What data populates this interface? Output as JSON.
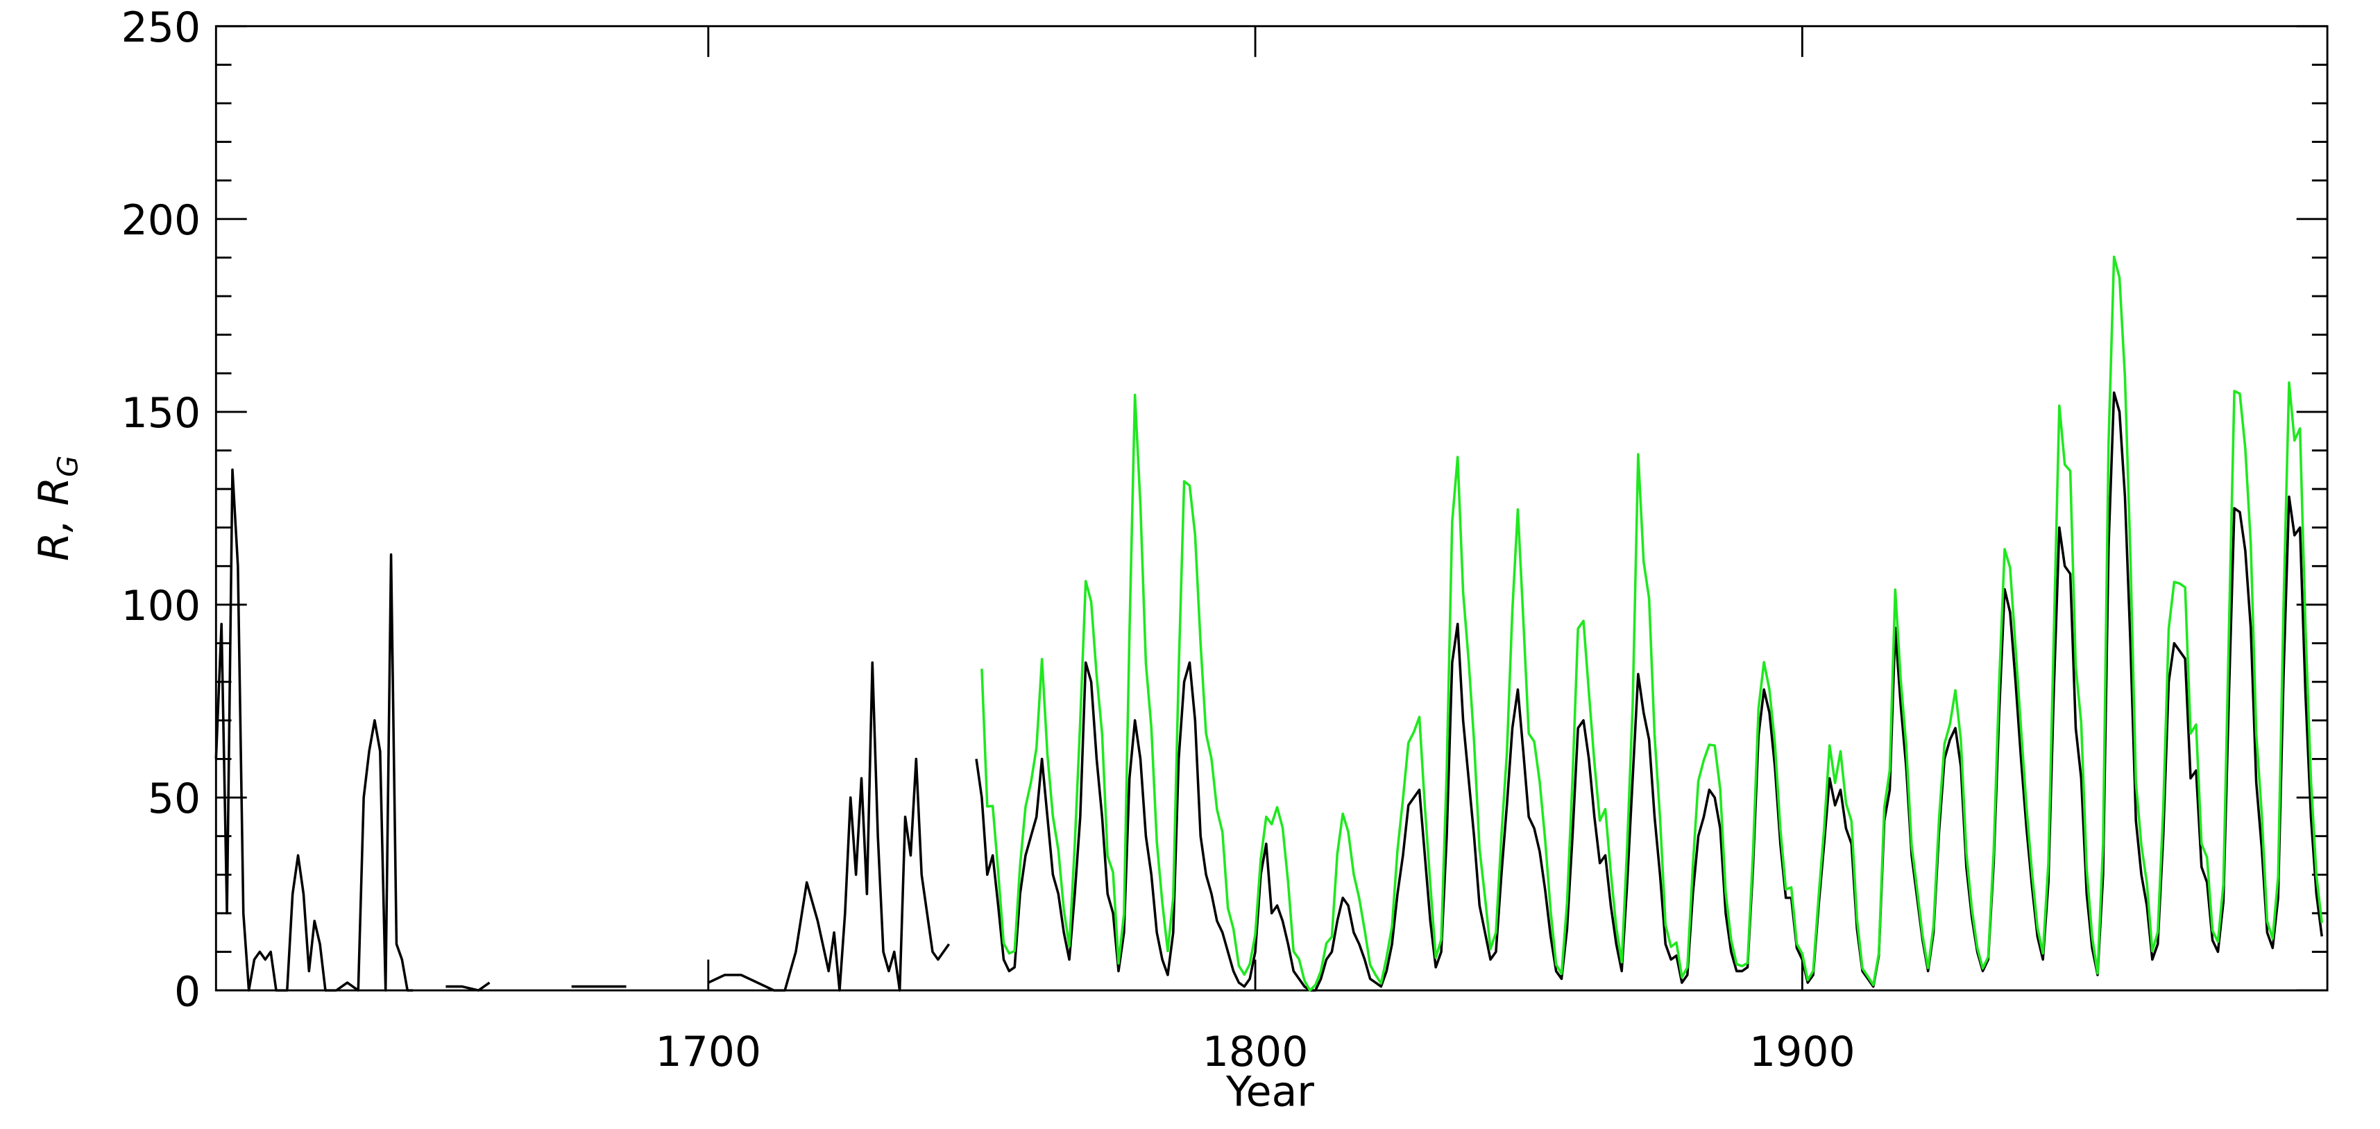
{
  "chart_data": {
    "type": "line",
    "x_label": "Year",
    "y_label": {
      "text": "R,  R",
      "subscript": "G"
    },
    "xlim": [
      1610,
      1996
    ],
    "xticks": [
      1700,
      1800,
      1900
    ],
    "ylim": [
      0,
      250
    ],
    "yticks": [
      0,
      50,
      100,
      150,
      200,
      250
    ],
    "yminorticks": [
      10,
      20,
      30,
      40,
      60,
      70,
      80,
      90,
      110,
      120,
      130,
      140,
      160,
      170,
      180,
      190,
      210,
      220,
      230,
      240
    ],
    "x": [
      1610,
      1611,
      1612,
      1613,
      1614,
      1615,
      1616,
      1617,
      1618,
      1619,
      1620,
      1621,
      1622,
      1623,
      1624,
      1625,
      1626,
      1627,
      1628,
      1629,
      1630,
      1632,
      1634,
      1636,
      1637,
      1638,
      1639,
      1640,
      1641,
      1642,
      1643,
      1644,
      1645,
      1646,
      1648,
      1652,
      1655,
      1658,
      1660,
      1662,
      1670,
      1672,
      1675,
      1680,
      1685,
      1688,
      1700,
      1703,
      1706,
      1709,
      1712,
      1714,
      1716,
      1718,
      1720,
      1722,
      1723,
      1724,
      1725,
      1726,
      1727,
      1728,
      1729,
      1730,
      1731,
      1732,
      1733,
      1734,
      1735,
      1736,
      1737,
      1738,
      1739,
      1740,
      1741,
      1742,
      1744,
      1745,
      1749,
      1750,
      1751,
      1752,
      1753,
      1754,
      1755,
      1756,
      1757,
      1758,
      1759,
      1760,
      1761,
      1762,
      1763,
      1764,
      1765,
      1766,
      1767,
      1768,
      1769,
      1770,
      1771,
      1772,
      1773,
      1774,
      1775,
      1776,
      1777,
      1778,
      1779,
      1780,
      1781,
      1782,
      1783,
      1784,
      1785,
      1786,
      1787,
      1788,
      1789,
      1790,
      1791,
      1792,
      1793,
      1794,
      1795,
      1796,
      1797,
      1798,
      1799,
      1800,
      1801,
      1802,
      1803,
      1804,
      1805,
      1806,
      1807,
      1808,
      1809,
      1810,
      1811,
      1812,
      1813,
      1814,
      1815,
      1816,
      1817,
      1818,
      1819,
      1820,
      1821,
      1822,
      1823,
      1824,
      1825,
      1826,
      1827,
      1828,
      1829,
      1830,
      1831,
      1832,
      1833,
      1834,
      1835,
      1836,
      1837,
      1838,
      1839,
      1840,
      1841,
      1842,
      1843,
      1844,
      1845,
      1846,
      1847,
      1848,
      1849,
      1850,
      1851,
      1852,
      1853,
      1854,
      1855,
      1856,
      1857,
      1858,
      1859,
      1860,
      1861,
      1862,
      1863,
      1864,
      1865,
      1866,
      1867,
      1868,
      1869,
      1870,
      1871,
      1872,
      1873,
      1874,
      1875,
      1876,
      1877,
      1878,
      1879,
      1880,
      1881,
      1882,
      1883,
      1884,
      1885,
      1886,
      1887,
      1888,
      1889,
      1890,
      1891,
      1892,
      1893,
      1894,
      1895,
      1896,
      1897,
      1898,
      1899,
      1900,
      1901,
      1902,
      1903,
      1904,
      1905,
      1906,
      1907,
      1908,
      1909,
      1910,
      1911,
      1912,
      1913,
      1914,
      1915,
      1916,
      1917,
      1918,
      1919,
      1920,
      1921,
      1922,
      1923,
      1924,
      1925,
      1926,
      1927,
      1928,
      1929,
      1930,
      1931,
      1932,
      1933,
      1934,
      1935,
      1936,
      1937,
      1938,
      1939,
      1940,
      1941,
      1942,
      1943,
      1944,
      1945,
      1946,
      1947,
      1948,
      1949,
      1950,
      1951,
      1952,
      1953,
      1954,
      1955,
      1956,
      1957,
      1958,
      1959,
      1960,
      1961,
      1962,
      1963,
      1964,
      1965,
      1966,
      1967,
      1968,
      1969,
      1970,
      1971,
      1972,
      1973,
      1974,
      1975,
      1976,
      1977,
      1978,
      1979,
      1980,
      1981,
      1982,
      1983,
      1984,
      1985,
      1986,
      1987,
      1988,
      1989,
      1990,
      1991,
      1992,
      1993,
      1994,
      1995
    ],
    "series": [
      {
        "color": "#000000",
        "values": [
          60,
          95,
          20,
          135,
          110,
          20,
          0,
          8,
          10,
          8,
          10,
          0,
          0,
          0,
          25,
          35,
          25,
          5,
          18,
          12,
          0,
          0,
          2,
          0,
          50,
          62,
          70,
          62,
          0,
          113,
          12,
          8,
          0,
          0,
          null,
          1,
          1,
          0,
          2,
          null,
          1,
          null,
          1,
          1,
          1,
          null,
          2,
          4,
          4,
          2,
          0,
          0,
          10,
          28,
          18,
          5,
          15,
          0,
          20,
          50,
          30,
          55,
          25,
          85,
          40,
          10,
          5,
          10,
          0,
          45,
          35,
          60,
          30,
          20,
          10,
          8,
          12,
          null,
          60,
          50,
          30,
          35,
          22,
          8,
          5,
          6,
          25,
          35,
          40,
          45,
          60,
          45,
          30,
          25,
          15,
          8,
          25,
          45,
          85,
          80,
          60,
          45,
          25,
          20,
          5,
          15,
          55,
          70,
          60,
          40,
          30,
          15,
          8,
          4,
          15,
          60,
          80,
          85,
          70,
          40,
          30,
          25,
          18,
          15,
          10,
          5,
          2,
          1,
          3,
          10,
          30,
          38,
          20,
          22,
          18,
          12,
          5,
          3,
          1,
          0,
          0,
          3,
          8,
          10,
          18,
          24,
          22,
          15,
          12,
          8,
          3,
          2,
          1,
          5,
          12,
          25,
          35,
          48,
          50,
          52,
          35,
          18,
          6,
          10,
          40,
          85,
          95,
          70,
          55,
          40,
          22,
          15,
          8,
          10,
          30,
          48,
          68,
          78,
          62,
          45,
          42,
          36,
          26,
          14,
          5,
          3,
          16,
          40,
          68,
          70,
          60,
          45,
          33,
          35,
          22,
          12,
          5,
          28,
          55,
          82,
          72,
          65,
          45,
          30,
          12,
          8,
          9,
          2,
          4,
          25,
          40,
          45,
          52,
          50,
          42,
          20,
          10,
          5,
          5,
          6,
          32,
          66,
          78,
          72,
          58,
          38,
          24,
          24,
          11,
          8,
          2,
          4,
          22,
          38,
          55,
          48,
          52,
          42,
          38,
          16,
          5,
          3,
          1,
          9,
          44,
          52,
          94,
          74,
          58,
          35,
          24,
          13,
          5,
          15,
          41,
          60,
          65,
          68,
          58,
          32,
          19,
          10,
          5,
          8,
          33,
          72,
          104,
          98,
          80,
          60,
          42,
          27,
          14,
          8,
          28,
          78,
          120,
          110,
          108,
          68,
          55,
          25,
          11,
          4,
          30,
          115,
          155,
          150,
          128,
          90,
          44,
          30,
          22,
          8,
          12,
          40,
          80,
          90,
          88,
          86,
          55,
          57,
          32,
          28,
          13,
          10,
          23,
          76,
          125,
          124,
          114,
          94,
          54,
          37,
          15,
          11,
          24,
          82,
          128,
          118,
          120,
          77,
          45,
          25,
          14
        ]
      },
      {
        "color": "#1fe81f",
        "values": [
          null,
          null,
          null,
          null,
          null,
          null,
          null,
          null,
          null,
          null,
          null,
          null,
          null,
          null,
          null,
          null,
          null,
          null,
          null,
          null,
          null,
          null,
          null,
          null,
          null,
          null,
          null,
          null,
          null,
          null,
          null,
          null,
          null,
          null,
          null,
          null,
          null,
          null,
          null,
          null,
          null,
          null,
          null,
          null,
          null,
          null,
          null,
          null,
          null,
          null,
          null,
          null,
          null,
          null,
          null,
          null,
          null,
          null,
          null,
          null,
          null,
          null,
          null,
          null,
          null,
          null,
          null,
          null,
          null,
          null,
          null,
          null,
          null,
          null,
          null,
          null,
          null,
          null,
          null,
          83.4,
          47.7,
          47.8,
          30.7,
          12.2,
          9.6,
          10.2,
          32.4,
          47.6,
          54.0,
          62.9,
          85.9,
          61.2,
          45.1,
          36.4,
          20.9,
          11.4,
          37.8,
          69.8,
          106.1,
          100.8,
          81.6,
          66.5,
          34.8,
          30.6,
          7.0,
          19.8,
          92.5,
          154.4,
          125.9,
          84.8,
          68.1,
          38.5,
          22.8,
          10.2,
          24.1,
          82.9,
          132.0,
          130.9,
          118.1,
          89.9,
          66.6,
          60.0,
          46.9,
          41.0,
          21.3,
          16.0,
          6.4,
          4.1,
          6.8,
          14.5,
          34.0,
          45.0,
          43.1,
          47.5,
          42.2,
          28.1,
          10.1,
          8.1,
          2.5,
          0.0,
          1.4,
          5.0,
          12.2,
          13.9,
          35.4,
          45.8,
          41.1,
          30.1,
          23.9,
          15.6,
          6.6,
          4.0,
          1.8,
          8.5,
          16.6,
          36.3,
          49.6,
          64.2,
          67.0,
          70.9,
          47.8,
          27.5,
          8.5,
          13.2,
          56.9,
          121.5,
          138.3,
          103.2,
          85.7,
          64.6,
          36.7,
          24.2,
          10.7,
          15.0,
          40.1,
          61.5,
          98.5,
          124.7,
          96.3,
          66.6,
          64.5,
          54.1,
          39.0,
          20.6,
          6.7,
          4.3,
          22.7,
          54.8,
          93.8,
          95.8,
          77.2,
          59.1,
          44.0,
          47.0,
          30.5,
          16.3,
          7.3,
          37.6,
          74.0,
          139.0,
          111.2,
          101.6,
          66.2,
          44.7,
          17.0,
          11.3,
          12.4,
          3.4,
          6.0,
          32.3,
          54.3,
          59.7,
          63.7,
          63.5,
          52.2,
          25.4,
          13.1,
          6.8,
          6.3,
          7.1,
          35.6,
          73.0,
          85.1,
          78.0,
          64.0,
          41.8,
          26.2,
          26.7,
          12.1,
          9.5,
          2.7,
          5.0,
          24.4,
          42.0,
          63.5,
          53.8,
          62.0,
          48.5,
          43.9,
          18.6,
          5.7,
          3.6,
          1.4,
          9.6,
          47.4,
          57.1,
          103.9,
          80.6,
          63.6,
          37.6,
          26.1,
          14.2,
          5.8,
          16.7,
          44.3,
          63.9,
          69.0,
          77.8,
          64.9,
          35.7,
          21.2,
          11.1,
          5.7,
          8.7,
          36.1,
          79.7,
          114.4,
          109.6,
          88.8,
          67.8,
          47.5,
          30.6,
          16.3,
          9.6,
          33.2,
          92.6,
          151.6,
          136.3,
          134.7,
          83.9,
          69.4,
          31.5,
          13.9,
          4.4,
          38.0,
          141.7,
          190.2,
          184.8,
          159.0,
          112.3,
          53.9,
          37.6,
          27.9,
          10.2,
          15.1,
          47.0,
          93.8,
          105.9,
          105.5,
          104.5,
          66.6,
          68.9,
          38.0,
          34.5,
          15.5,
          12.6,
          27.5,
          92.5,
          155.4,
          154.7,
          140.5,
          115.9,
          66.6,
          45.9,
          17.9,
          13.4,
          29.4,
          100.2,
          157.6,
          142.6,
          145.7,
          94.3,
          54.6,
          29.9,
          17.5
        ]
      }
    ]
  }
}
